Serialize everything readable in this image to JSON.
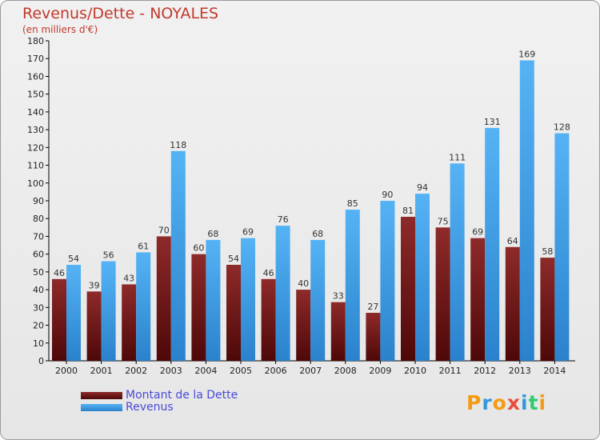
{
  "header": {
    "title": "Revenus/Dette - NOYALES",
    "subtitle": "(en milliers d'€)"
  },
  "legend": {
    "items": [
      {
        "label": "Montant de la Dette",
        "color": "#7a1f1f"
      },
      {
        "label": "Revenus",
        "color": "#3f9fe8"
      }
    ]
  },
  "logo": {
    "letters": [
      "P",
      "r",
      "o",
      "x",
      "i",
      "t",
      "i"
    ],
    "colors": [
      "#f39c12",
      "#3498db",
      "#f39c12",
      "#e74c3c",
      "#3498db",
      "#2ecc71",
      "#f39c12"
    ]
  },
  "chart_data": {
    "type": "bar",
    "title": "Revenus/Dette - NOYALES",
    "subtitle": "(en milliers d'€)",
    "categories": [
      "2000",
      "2001",
      "2002",
      "2003",
      "2004",
      "2005",
      "2006",
      "2007",
      "2008",
      "2009",
      "2010",
      "2011",
      "2012",
      "2013",
      "2014"
    ],
    "series": [
      {
        "name": "Montant de la Dette",
        "color": "#7a1f1f",
        "values": [
          46,
          39,
          43,
          70,
          60,
          54,
          46,
          40,
          33,
          27,
          81,
          75,
          69,
          64,
          58
        ]
      },
      {
        "name": "Revenus",
        "color": "#3f9fe8",
        "values": [
          54,
          56,
          61,
          118,
          68,
          69,
          76,
          68,
          85,
          90,
          94,
          111,
          131,
          169,
          128
        ]
      }
    ],
    "ylim": [
      0,
      180
    ],
    "ytick_step": 10,
    "grid": false,
    "legend_position": "bottom-left"
  }
}
